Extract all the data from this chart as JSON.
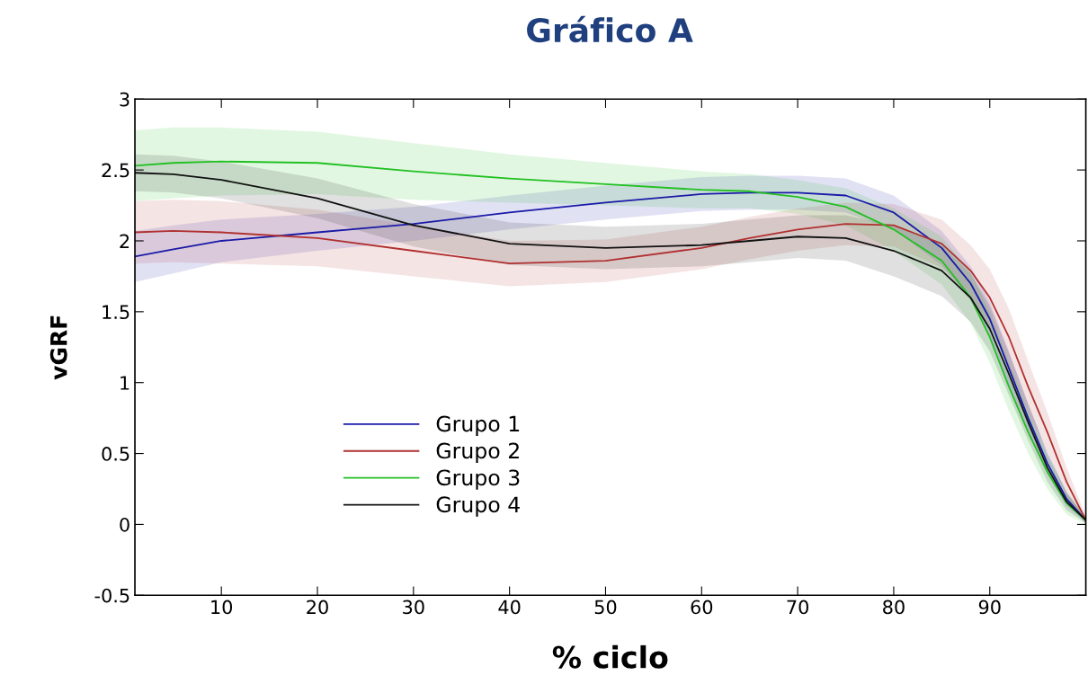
{
  "chart_data": {
    "type": "line",
    "title": "Gráfico A",
    "xlabel": "% ciclo",
    "ylabel": "vGRF",
    "x": [
      1,
      5,
      10,
      20,
      30,
      40,
      50,
      60,
      65,
      70,
      75,
      80,
      85,
      88,
      90,
      92,
      94,
      96,
      98,
      100
    ],
    "xlim": [
      1,
      100
    ],
    "xticks": [
      10,
      20,
      30,
      40,
      50,
      60,
      70,
      80,
      90
    ],
    "ylim": [
      -0.5,
      3
    ],
    "yticks": [
      -0.5,
      0,
      0.5,
      1,
      1.5,
      2,
      2.5,
      3
    ],
    "grid": false,
    "legend": "bottom left",
    "marker": "none",
    "line_style": "solid",
    "series": [
      {
        "name": "Grupo 1",
        "color": "#1a1aa8",
        "values": [
          1.89,
          1.94,
          2.0,
          2.06,
          2.12,
          2.2,
          2.27,
          2.33,
          2.34,
          2.34,
          2.32,
          2.2,
          1.95,
          1.7,
          1.45,
          1.1,
          0.75,
          0.43,
          0.18,
          0.03
        ],
        "lower": [
          1.71,
          1.77,
          1.85,
          1.93,
          2.0,
          2.08,
          2.15,
          2.21,
          2.22,
          2.22,
          2.2,
          2.08,
          1.83,
          1.58,
          1.33,
          0.98,
          0.65,
          0.35,
          0.13,
          0.01
        ],
        "upper": [
          2.07,
          2.11,
          2.15,
          2.19,
          2.24,
          2.32,
          2.39,
          2.45,
          2.46,
          2.46,
          2.44,
          2.32,
          2.07,
          1.82,
          1.57,
          1.22,
          0.85,
          0.51,
          0.23,
          0.05
        ]
      },
      {
        "name": "Grupo 2",
        "color": "#b03030",
        "values": [
          2.06,
          2.07,
          2.06,
          2.02,
          1.93,
          1.84,
          1.86,
          1.95,
          2.02,
          2.08,
          2.12,
          2.11,
          1.98,
          1.79,
          1.6,
          1.32,
          0.97,
          0.65,
          0.3,
          0.03
        ],
        "lower": [
          1.84,
          1.85,
          1.84,
          1.82,
          1.75,
          1.68,
          1.71,
          1.8,
          1.87,
          1.93,
          1.97,
          1.96,
          1.81,
          1.61,
          1.4,
          1.12,
          0.79,
          0.51,
          0.2,
          0.0
        ],
        "upper": [
          2.28,
          2.29,
          2.28,
          2.22,
          2.11,
          2.0,
          2.01,
          2.1,
          2.17,
          2.23,
          2.27,
          2.26,
          2.15,
          1.97,
          1.8,
          1.52,
          1.15,
          0.79,
          0.4,
          0.06
        ]
      },
      {
        "name": "Grupo 3",
        "color": "#22c022",
        "values": [
          2.53,
          2.55,
          2.56,
          2.55,
          2.49,
          2.44,
          2.4,
          2.36,
          2.35,
          2.31,
          2.24,
          2.08,
          1.86,
          1.6,
          1.32,
          0.97,
          0.65,
          0.37,
          0.15,
          0.03
        ],
        "lower": [
          2.28,
          2.3,
          2.32,
          2.33,
          2.29,
          2.27,
          2.25,
          2.23,
          2.23,
          2.19,
          2.11,
          1.93,
          1.69,
          1.42,
          1.14,
          0.8,
          0.5,
          0.25,
          0.07,
          0.0
        ],
        "upper": [
          2.78,
          2.8,
          2.8,
          2.77,
          2.69,
          2.61,
          2.55,
          2.49,
          2.47,
          2.43,
          2.37,
          2.23,
          2.03,
          1.78,
          1.5,
          1.14,
          0.8,
          0.49,
          0.23,
          0.06
        ]
      },
      {
        "name": "Grupo 4",
        "color": "#111111",
        "values": [
          2.48,
          2.47,
          2.43,
          2.3,
          2.11,
          1.98,
          1.95,
          1.97,
          2.0,
          2.03,
          2.02,
          1.93,
          1.79,
          1.6,
          1.38,
          1.06,
          0.72,
          0.4,
          0.16,
          0.03
        ],
        "lower": [
          2.35,
          2.34,
          2.3,
          2.16,
          1.96,
          1.83,
          1.8,
          1.82,
          1.85,
          1.88,
          1.86,
          1.75,
          1.61,
          1.43,
          1.22,
          0.91,
          0.59,
          0.3,
          0.1,
          0.01
        ],
        "upper": [
          2.61,
          2.6,
          2.56,
          2.44,
          2.26,
          2.13,
          2.1,
          2.12,
          2.15,
          2.18,
          2.18,
          2.11,
          1.97,
          1.77,
          1.54,
          1.21,
          0.85,
          0.5,
          0.22,
          0.05
        ]
      }
    ]
  }
}
